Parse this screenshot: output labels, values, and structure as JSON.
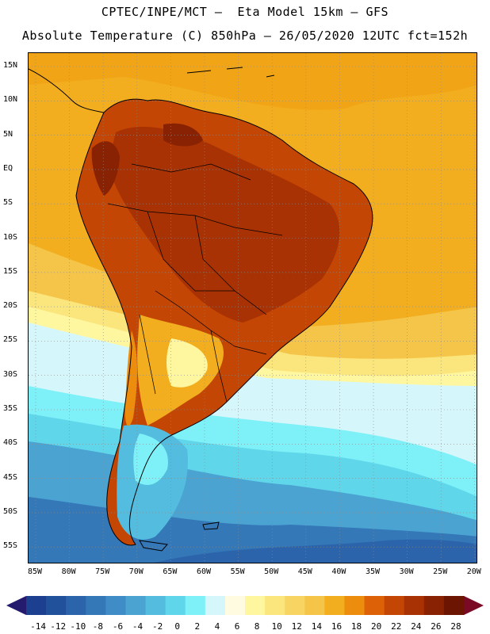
{
  "header": {
    "title_line1": "CPTEC/INPE/MCT –  Eta Model 15km – GFS",
    "title_line2": "Absolute Temperature (C) 850hPa – 26/05/2020 12UTC fct=152h"
  },
  "map": {
    "lat_labels": [
      "15N",
      "10N",
      "5N",
      "EQ",
      "5S",
      "10S",
      "15S",
      "20S",
      "25S",
      "30S",
      "35S",
      "40S",
      "45S",
      "50S",
      "55S"
    ],
    "lon_labels": [
      "85W",
      "80W",
      "75W",
      "70W",
      "65W",
      "60W",
      "55W",
      "50W",
      "45W",
      "40W",
      "35W",
      "30W",
      "25W",
      "20W"
    ]
  },
  "colorbar": {
    "labels": [
      "-14",
      "-12",
      "-10",
      "-8",
      "-6",
      "-4",
      "-2",
      "0",
      "2",
      "4",
      "6",
      "8",
      "10",
      "12",
      "14",
      "16",
      "18",
      "20",
      "22",
      "24",
      "26",
      "28"
    ],
    "colors": [
      "#1d3f8f",
      "#22519c",
      "#2b64ab",
      "#3478b8",
      "#3f8cc6",
      "#4ba3d2",
      "#53bcdf",
      "#5fd6ea",
      "#7ef0f8",
      "#d5f6fb",
      "#fffbe0",
      "#fff7a0",
      "#fbe67e",
      "#f8d563",
      "#f5c549",
      "#f2ae1f",
      "#ec8d0d",
      "#dd6207",
      "#c44604",
      "#a83203",
      "#892202",
      "#6c1502"
    ],
    "arrow_low_color": "#241a6e",
    "arrow_high_color": "#7a0a25"
  }
}
